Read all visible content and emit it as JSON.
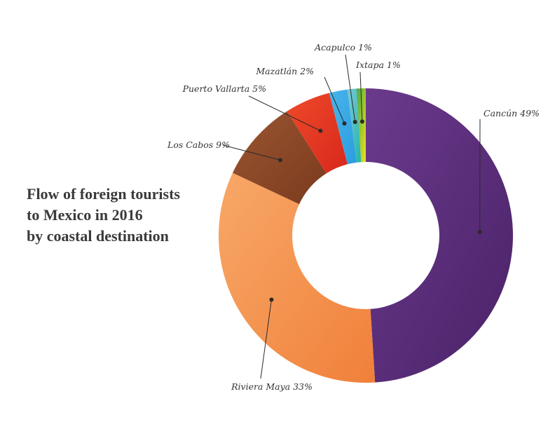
{
  "title_lines": [
    "Flow of foreign tourists",
    "to Mexico in 2016",
    "by coastal destination"
  ],
  "chart_data": {
    "type": "pie",
    "variant": "donut",
    "title": "Flow of foreign tourists to Mexico in 2016 by coastal destination",
    "unit": "%",
    "slices": [
      {
        "label": "Cancún",
        "value": 49,
        "display": "Cancún 49%",
        "color": "#4b2268",
        "color_light": "#6a3a8c"
      },
      {
        "label": "Riviera Maya",
        "value": 33,
        "display": "Riviera Maya 33%",
        "color": "#f0803a",
        "color_light": "#f8a868"
      },
      {
        "label": "Los Cabos",
        "value": 9,
        "display": "Los Cabos 9%",
        "color": "#7b3a1e",
        "color_light": "#9a5632"
      },
      {
        "label": "Puerto Vallarta",
        "value": 5,
        "display": "Puerto Vallarta 5%",
        "color": "#d8281c",
        "color_light": "#ee4a2a"
      },
      {
        "label": "Mazatlán",
        "value": 2,
        "display": "Mazatlán 2%",
        "color": "#2a9ee0",
        "color_light": "#4ab4ea"
      },
      {
        "label": "Acapulco",
        "value": 1,
        "display": "Acapulco 1%",
        "color": "#22b6a8",
        "color_light": "#7cc8d8"
      },
      {
        "label": "Ixtapa",
        "value": 1,
        "display": "Ixtapa 1%",
        "color": "#f2e21a",
        "color_light": "#44a844"
      }
    ],
    "start": "top, clockwise",
    "legend": "none (labels with leader lines)"
  }
}
